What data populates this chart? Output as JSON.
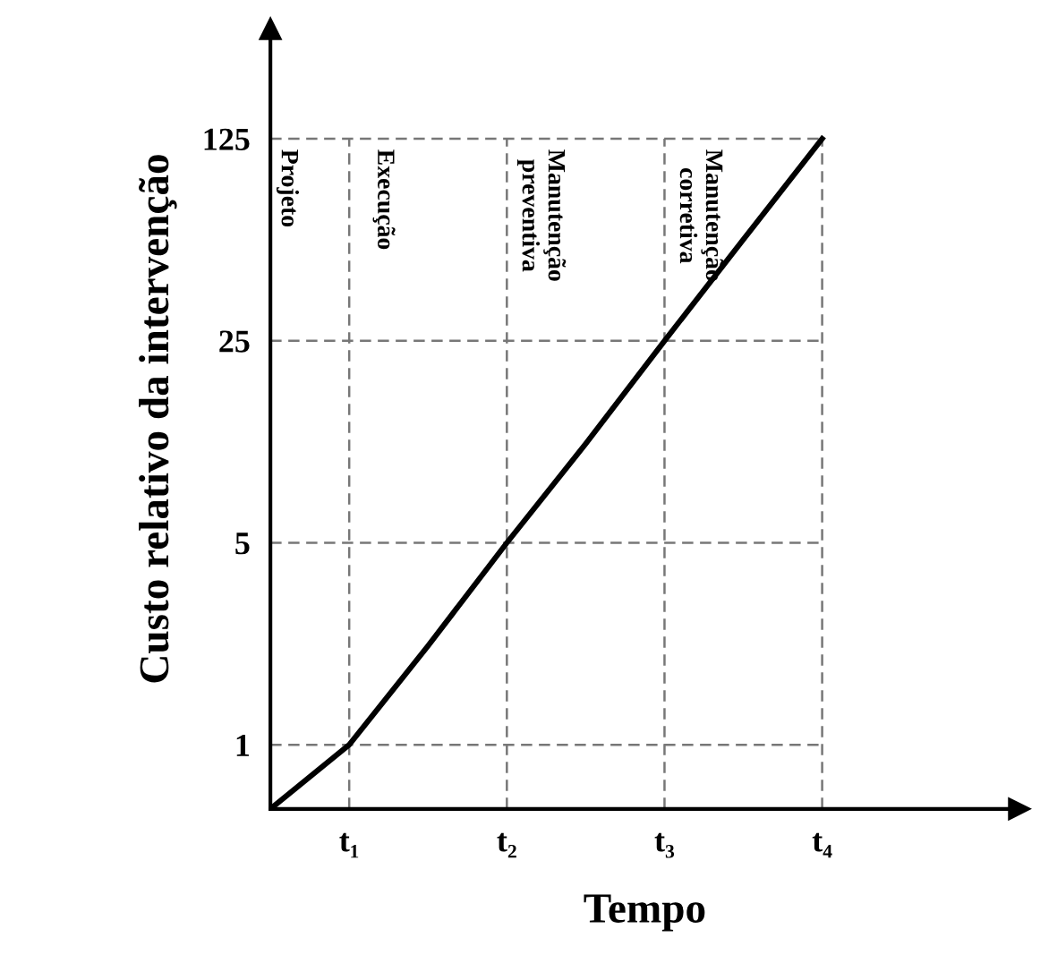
{
  "chart_data": {
    "type": "line",
    "xlabel": "Tempo",
    "ylabel": "Custo relativo da intervenção",
    "categories": [
      null,
      "t₁",
      null,
      "t₂",
      null,
      "t₃",
      null,
      "t₄"
    ],
    "values": [
      0.6,
      1,
      2.2,
      5,
      11,
      25,
      56,
      125
    ],
    "color": "#000000",
    "log": true,
    "grid": true,
    "marker": "none",
    "line_style": "solid",
    "ylim": [
      0.6,
      300
    ],
    "yticks": [
      1,
      5,
      25,
      125
    ],
    "annotations": [
      "Projeto",
      "Execução",
      "Manutenção preventiva",
      "Manutenção corretiva"
    ]
  }
}
